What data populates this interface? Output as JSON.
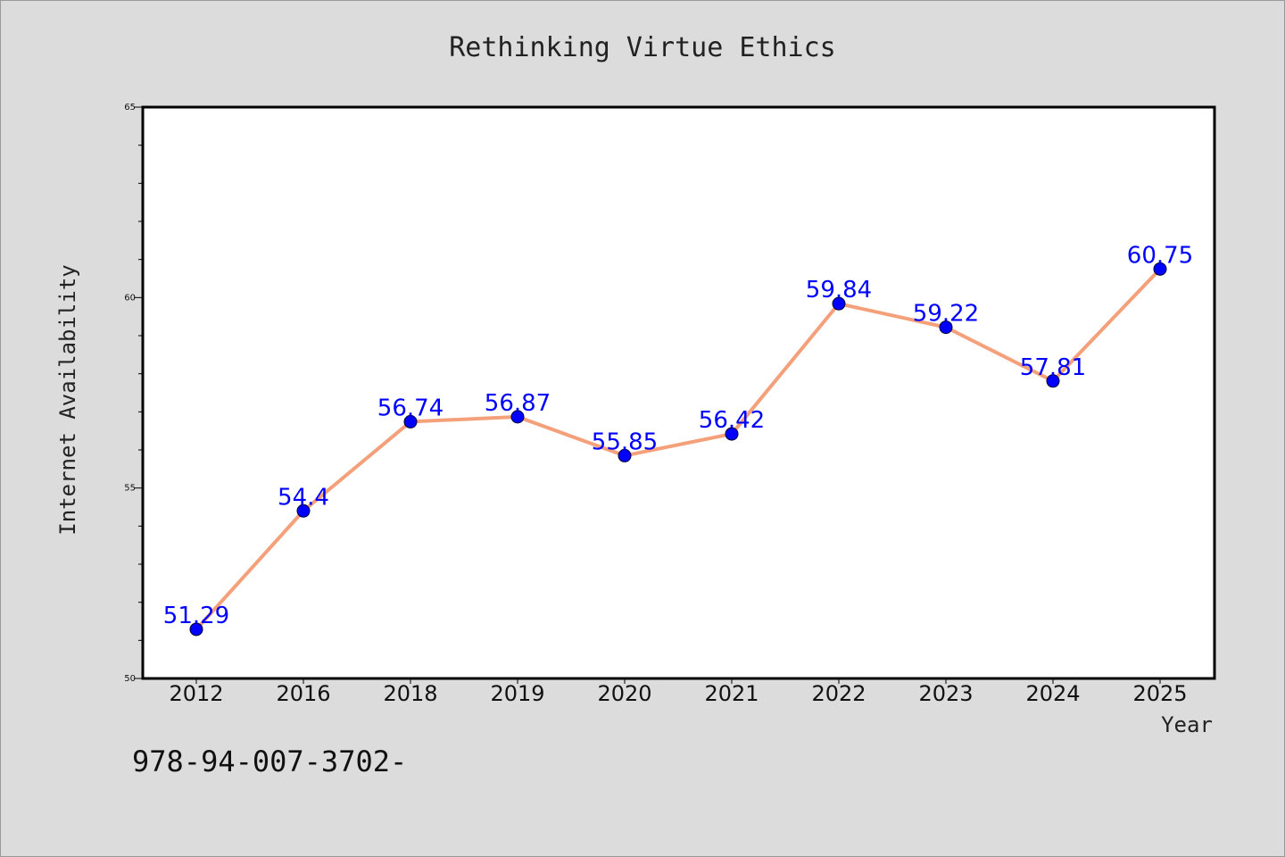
{
  "chart_data": {
    "type": "line",
    "title": "Rethinking Virtue Ethics",
    "xlabel": "Year",
    "ylabel": "Internet Availability",
    "categories": [
      "2012",
      "2016",
      "2018",
      "2019",
      "2020",
      "2021",
      "2022",
      "2023",
      "2024",
      "2025"
    ],
    "series": [
      {
        "values": [
          51.29,
          54.4,
          56.74,
          56.87,
          55.85,
          56.42,
          59.84,
          59.22,
          57.81,
          60.75
        ],
        "data_labels": [
          "51.29",
          "54.4",
          "56.74",
          "56.87",
          "55.85",
          "56.42",
          "59.84",
          "59.22",
          "57.81",
          "60.75"
        ]
      }
    ],
    "ylim": [
      50,
      65
    ],
    "yticks": [
      "50",
      "55",
      "60",
      "65"
    ],
    "grid": false,
    "line_color": "#f4a07a",
    "marker_color": "#0000ff",
    "label_color": "#0000ff"
  },
  "footnote": "978-94-007-3702-"
}
